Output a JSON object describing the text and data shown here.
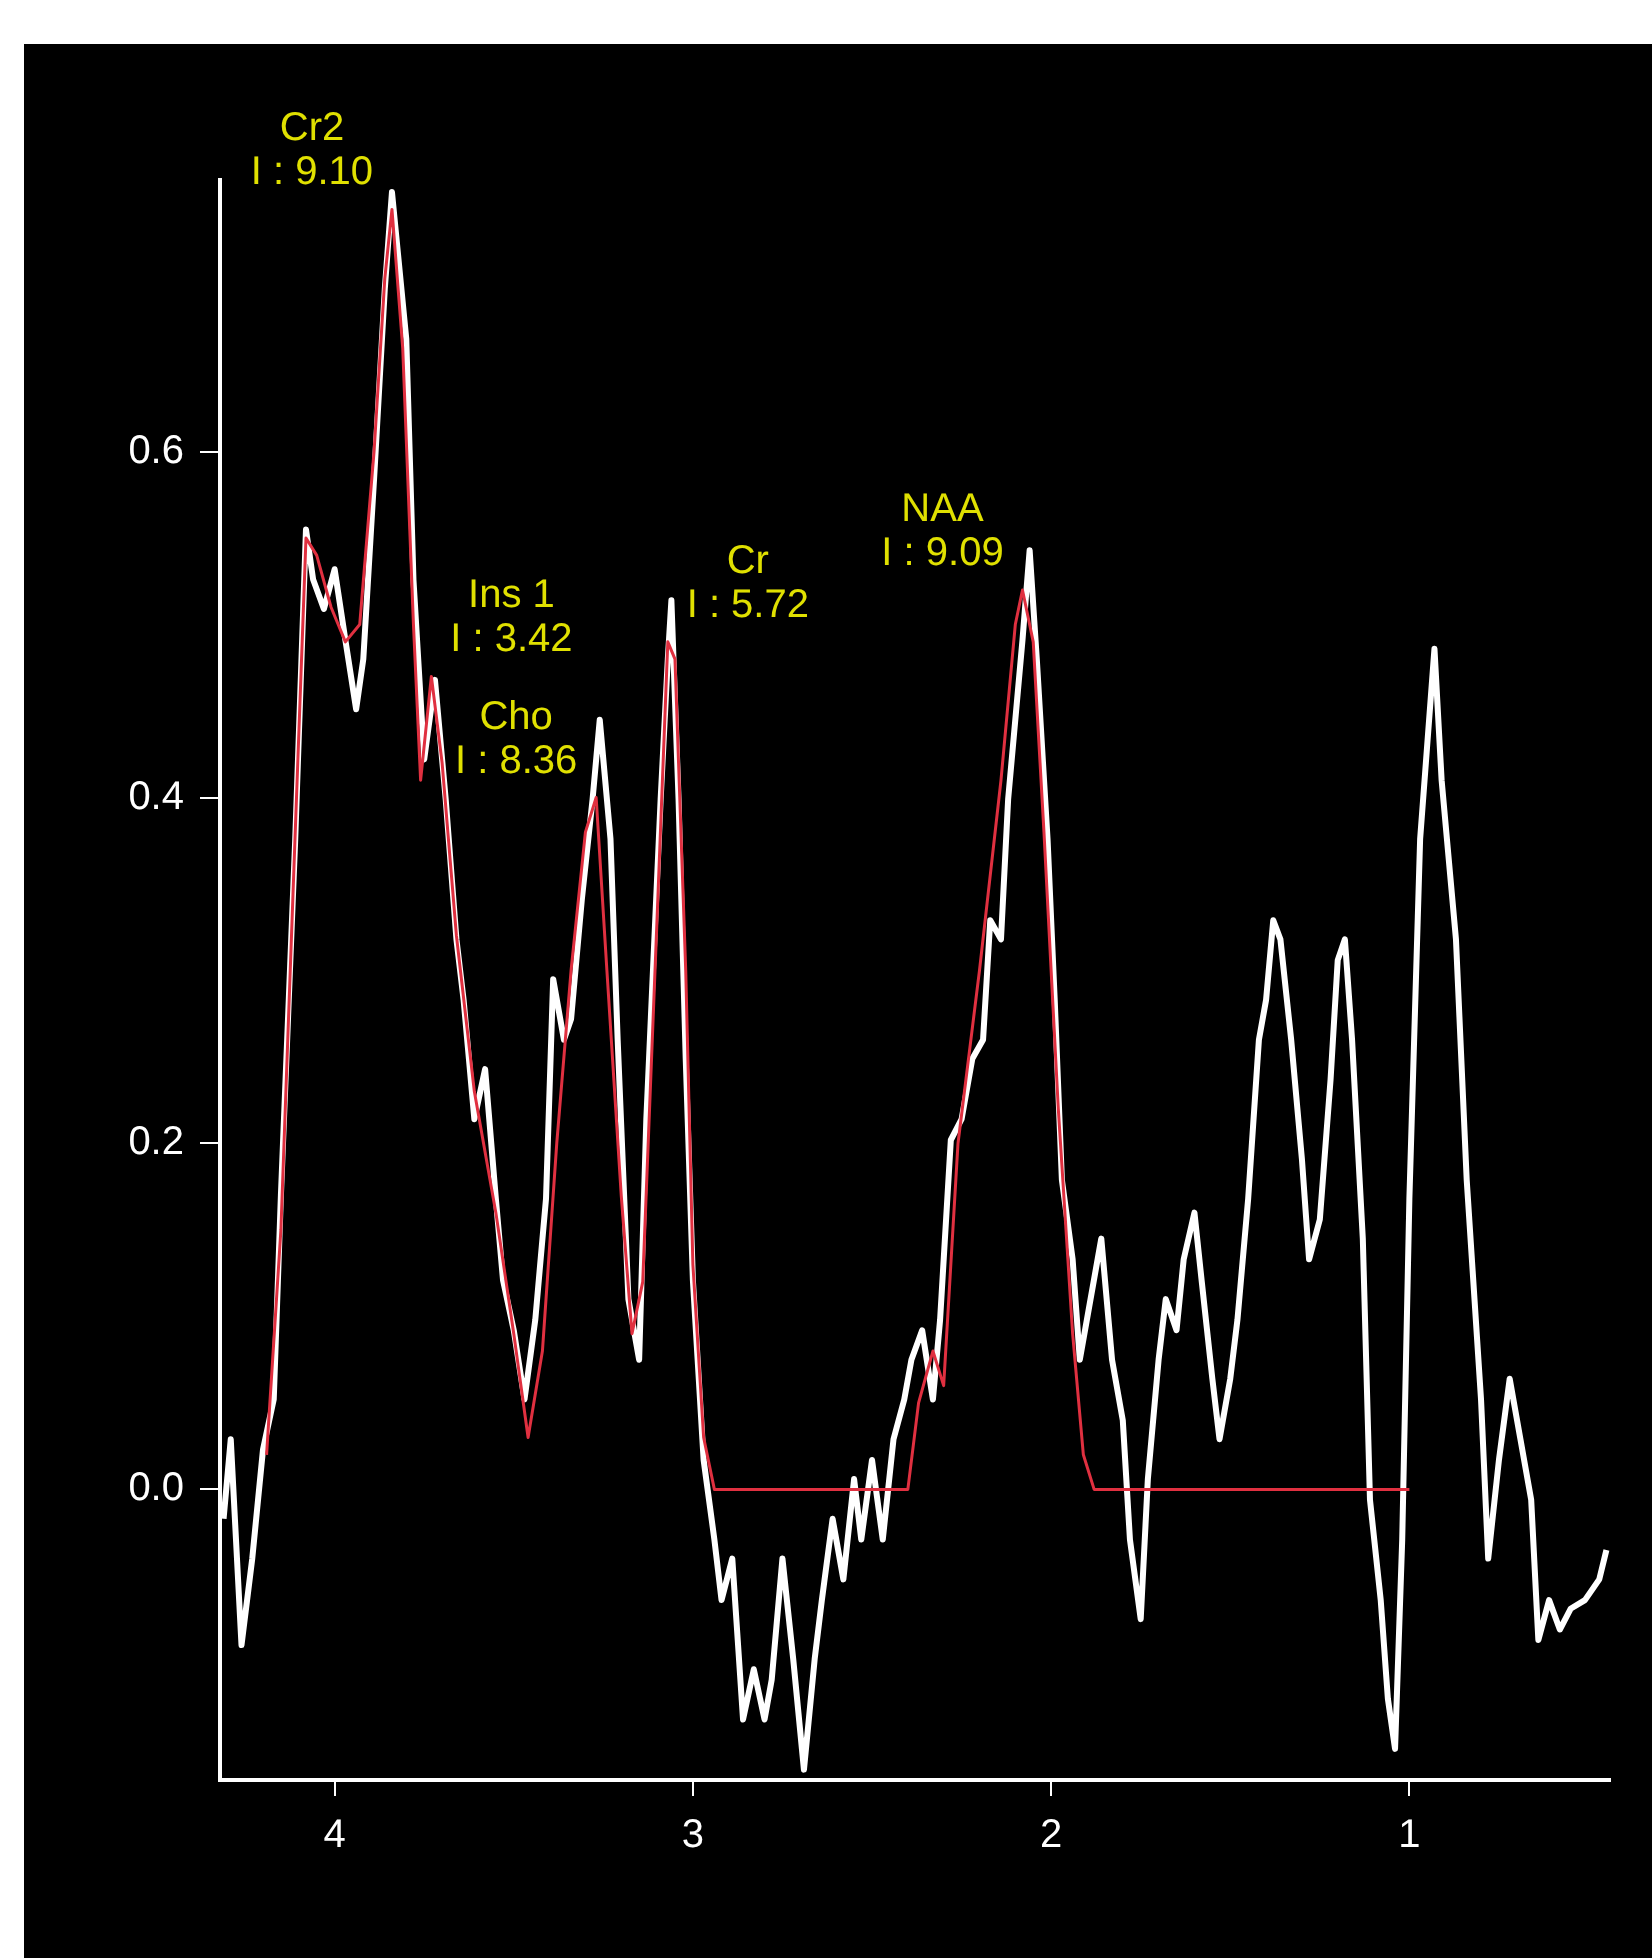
{
  "chart_data": {
    "type": "line",
    "series": [
      {
        "color": "#ffffff",
        "x": [
          4.31,
          4.29,
          4.26,
          4.23,
          4.2,
          4.17,
          4.15,
          4.11,
          4.08,
          4.06,
          4.03,
          4.0,
          3.97,
          3.94,
          3.92,
          3.89,
          3.86,
          3.84,
          3.8,
          3.78,
          3.75,
          3.72,
          3.69,
          3.66,
          3.64,
          3.61,
          3.58,
          3.55,
          3.53,
          3.5,
          3.47,
          3.44,
          3.41,
          3.39,
          3.36,
          3.34,
          3.31,
          3.28,
          3.26,
          3.23,
          3.21,
          3.18,
          3.15,
          3.13,
          3.09,
          3.07,
          3.06,
          3.04,
          3.02,
          3.0,
          2.97,
          2.94,
          2.92,
          2.89,
          2.86,
          2.83,
          2.8,
          2.78,
          2.75,
          2.72,
          2.69,
          2.66,
          2.64,
          2.61,
          2.58,
          2.55,
          2.53,
          2.5,
          2.47,
          2.44,
          2.41,
          2.39,
          2.36,
          2.33,
          2.31,
          2.28,
          2.25,
          2.22,
          2.19,
          2.17,
          2.14,
          2.12,
          2.08,
          2.06,
          2.04,
          2.01,
          1.99,
          1.97,
          1.94,
          1.92,
          1.89,
          1.86,
          1.83,
          1.8,
          1.78,
          1.75,
          1.73,
          1.7,
          1.68,
          1.65,
          1.63,
          1.6,
          1.58,
          1.55,
          1.53,
          1.5,
          1.48,
          1.45,
          1.42,
          1.4,
          1.38,
          1.36,
          1.33,
          1.3,
          1.28,
          1.25,
          1.22,
          1.2,
          1.18,
          1.16,
          1.13,
          1.11,
          1.08,
          1.06,
          1.04,
          1.02,
          1.0,
          0.97,
          0.93,
          0.91,
          0.87,
          0.84,
          0.8,
          0.78,
          0.75,
          0.72,
          0.69,
          0.66,
          0.64,
          0.61,
          0.58,
          0.55,
          0.51,
          0.47,
          0.45
        ],
        "values": [
          -0.017,
          0.029,
          -0.09,
          -0.04,
          0.023,
          0.052,
          0.17,
          0.376,
          0.555,
          0.526,
          0.509,
          0.532,
          0.491,
          0.451,
          0.48,
          0.584,
          0.694,
          0.75,
          0.665,
          0.526,
          0.422,
          0.468,
          0.399,
          0.318,
          0.283,
          0.214,
          0.243,
          0.168,
          0.121,
          0.092,
          0.052,
          0.098,
          0.168,
          0.295,
          0.26,
          0.272,
          0.341,
          0.399,
          0.445,
          0.376,
          0.26,
          0.11,
          0.075,
          0.214,
          0.399,
          0.48,
          0.514,
          0.399,
          0.249,
          0.121,
          0.017,
          -0.029,
          -0.064,
          -0.04,
          -0.133,
          -0.104,
          -0.133,
          -0.11,
          -0.04,
          -0.098,
          -0.162,
          -0.098,
          -0.064,
          -0.017,
          -0.052,
          0.006,
          -0.029,
          0.017,
          -0.029,
          0.029,
          0.052,
          0.075,
          0.092,
          0.052,
          0.098,
          0.202,
          0.214,
          0.249,
          0.26,
          0.329,
          0.318,
          0.399,
          0.491,
          0.543,
          0.48,
          0.376,
          0.283,
          0.179,
          0.133,
          0.075,
          0.11,
          0.145,
          0.075,
          0.04,
          -0.029,
          -0.075,
          0.006,
          0.075,
          0.11,
          0.092,
          0.133,
          0.16,
          0.121,
          0.064,
          0.029,
          0.064,
          0.098,
          0.168,
          0.26,
          0.283,
          0.329,
          0.318,
          0.26,
          0.191,
          0.133,
          0.156,
          0.237,
          0.306,
          0.318,
          0.26,
          0.145,
          -0.006,
          -0.064,
          -0.121,
          -0.15,
          -0.029,
          0.168,
          0.376,
          0.486,
          0.41,
          0.318,
          0.179,
          0.052,
          -0.04,
          0.017,
          0.064,
          0.029,
          -0.006,
          -0.087,
          -0.064,
          -0.081,
          -0.069,
          -0.064,
          -0.052,
          -0.035
        ]
      },
      {
        "color": "#e03040",
        "x": [
          4.19,
          4.15,
          4.11,
          4.08,
          4.05,
          4.01,
          3.97,
          3.93,
          3.89,
          3.86,
          3.84,
          3.81,
          3.78,
          3.76,
          3.73,
          3.7,
          3.66,
          3.61,
          3.55,
          3.5,
          3.46,
          3.42,
          3.38,
          3.34,
          3.3,
          3.27,
          3.24,
          3.2,
          3.17,
          3.14,
          3.1,
          3.07,
          3.05,
          3.02,
          3.0,
          2.97,
          2.94,
          2.4,
          2.37,
          2.33,
          2.3,
          2.26,
          2.2,
          2.14,
          2.1,
          2.08,
          2.05,
          2.02,
          1.98,
          1.94,
          1.91,
          1.88,
          1.0
        ],
        "values": [
          0.02,
          0.15,
          0.38,
          0.55,
          0.54,
          0.51,
          0.49,
          0.5,
          0.6,
          0.7,
          0.74,
          0.66,
          0.5,
          0.41,
          0.47,
          0.42,
          0.32,
          0.23,
          0.16,
          0.09,
          0.03,
          0.08,
          0.2,
          0.3,
          0.38,
          0.4,
          0.3,
          0.17,
          0.09,
          0.12,
          0.33,
          0.49,
          0.48,
          0.3,
          0.13,
          0.03,
          0,
          0,
          0.05,
          0.08,
          0.06,
          0.2,
          0.3,
          0.41,
          0.5,
          0.52,
          0.49,
          0.38,
          0.22,
          0.09,
          0.02,
          0,
          0
        ]
      }
    ],
    "annotations": [
      {
        "text": "Cr2\nI : 9.10",
        "x": 3.84,
        "y": 0.74
      },
      {
        "text": "Ins 1\nI : 3.42",
        "x": 3.73,
        "y": 0.47
      },
      {
        "text": "Cho\nI : 8.36",
        "x": 3.27,
        "y": 0.4
      },
      {
        "text": "Cr\nI : 5.72",
        "x": 3.07,
        "y": 0.49
      },
      {
        "text": "NAA\nI : 9.09",
        "x": 2.08,
        "y": 0.52
      }
    ],
    "xlim": [
      4.32,
      0.44
    ],
    "xticks": [
      4,
      3,
      2,
      1
    ],
    "ylim": [
      -0.168,
      0.757
    ],
    "yticks": [
      {
        "value": 0,
        "label": "0.0"
      },
      {
        "value": 0.2,
        "label": "0.2"
      },
      {
        "value": 0.4,
        "label": "0.4"
      },
      {
        "value": 0.6,
        "label": "0.6"
      }
    ],
    "grid": false,
    "marker": "none"
  }
}
